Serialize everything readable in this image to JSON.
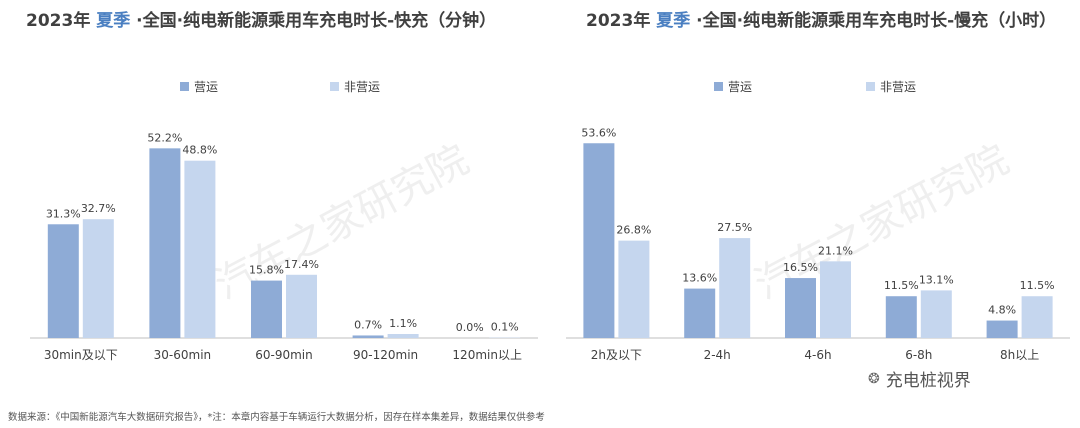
{
  "charts": [
    {
      "title_prefix": "2023年",
      "title_season": "夏季",
      "title_suffix": "·全国·纯电新能源乘用车充电时长-快充（分钟）",
      "legend": [
        "营运",
        "非营运"
      ],
      "colors": [
        "#8eabd6",
        "#c5d6ee"
      ]
    },
    {
      "title_prefix": "2023年",
      "title_season": "夏季",
      "title_suffix": "·全国·纯电新能源乘用车充电时长-慢充（小时）",
      "legend": [
        "营运",
        "非营运"
      ],
      "colors": [
        "#8eabd6",
        "#c5d6ee"
      ]
    }
  ],
  "chart_data": [
    {
      "type": "bar",
      "title": "2023年 夏季 ·全国·纯电新能源乘用车充电时长-快充（分钟）",
      "categories": [
        "30min及以下",
        "30-60min",
        "60-90min",
        "90-120min",
        "120min以上"
      ],
      "series": [
        {
          "name": "营运",
          "values": [
            31.3,
            52.2,
            15.8,
            0.7,
            0.0
          ]
        },
        {
          "name": "非营运",
          "values": [
            32.7,
            48.8,
            17.4,
            1.1,
            0.1
          ]
        }
      ],
      "unit": "%",
      "ylim": [
        0,
        60
      ],
      "legend_position": "top"
    },
    {
      "type": "bar",
      "title": "2023年 夏季 ·全国·纯电新能源乘用车充电时长-慢充（小时）",
      "categories": [
        "2h及以下",
        "2-4h",
        "4-6h",
        "6-8h",
        "8h以上"
      ],
      "series": [
        {
          "name": "营运",
          "values": [
            53.6,
            13.6,
            16.5,
            11.5,
            4.8
          ]
        },
        {
          "name": "非营运",
          "values": [
            26.8,
            27.5,
            21.1,
            13.1,
            11.5
          ]
        }
      ],
      "unit": "%",
      "ylim": [
        0,
        60
      ],
      "legend_position": "top"
    }
  ],
  "watermark": "汽车之家研究院",
  "footer": "数据来源：《中国新能源汽车大数据研究报告》，*注：本章内容基于车辆运行大数据分析，因存在样本集差异，数据结果仅供参考",
  "brand": "充电桩视界"
}
